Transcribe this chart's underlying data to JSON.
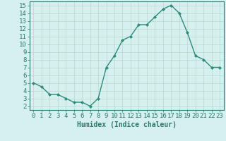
{
  "x": [
    0,
    1,
    2,
    3,
    4,
    5,
    6,
    7,
    8,
    9,
    10,
    11,
    12,
    13,
    14,
    15,
    16,
    17,
    18,
    19,
    20,
    21,
    22,
    23
  ],
  "y": [
    5.0,
    4.5,
    3.5,
    3.5,
    3.0,
    2.5,
    2.5,
    2.0,
    3.0,
    7.0,
    8.5,
    10.5,
    11.0,
    12.5,
    12.5,
    13.5,
    14.5,
    15.0,
    14.0,
    11.5,
    8.5,
    8.0,
    7.0,
    7.0
  ],
  "line_color": "#2e8b7a",
  "marker": "D",
  "marker_size": 2.0,
  "bg_color": "#d5f0ee",
  "grid_color": "#b8d8d4",
  "xlabel": "Humidex (Indice chaleur)",
  "xlim": [
    -0.5,
    23.5
  ],
  "ylim": [
    1.5,
    15.5
  ],
  "yticks": [
    2,
    3,
    4,
    5,
    6,
    7,
    8,
    9,
    10,
    11,
    12,
    13,
    14,
    15
  ],
  "xticks": [
    0,
    1,
    2,
    3,
    4,
    5,
    6,
    7,
    8,
    9,
    10,
    11,
    12,
    13,
    14,
    15,
    16,
    17,
    18,
    19,
    20,
    21,
    22,
    23
  ],
  "tick_color": "#2e7a6a",
  "label_color": "#2e7a6a",
  "xlabel_fontsize": 7,
  "tick_fontsize": 6.5,
  "line_width": 1.0
}
